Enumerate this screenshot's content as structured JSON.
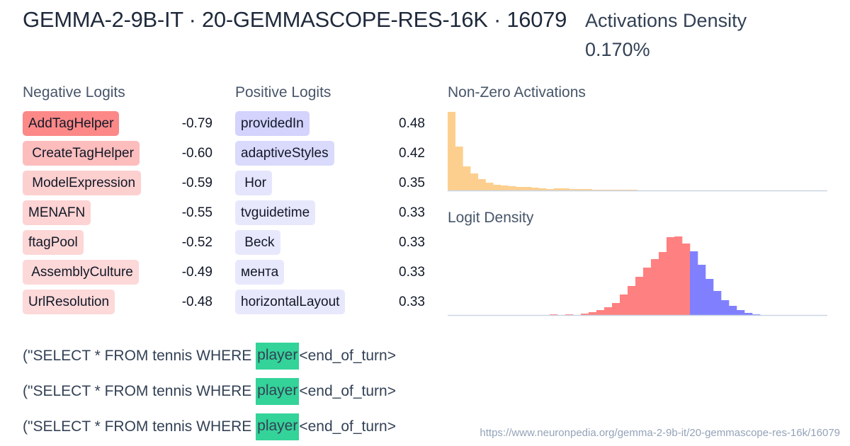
{
  "header": {
    "title": "GEMMA-2-9B-IT · 20-GEMMASCOPE-RES-16K · 16079",
    "density_label": "Activations Density",
    "density_value": "0.170%"
  },
  "negative_logits": {
    "title": "Negative Logits",
    "items": [
      {
        "token": "AddTagHelper",
        "value": "-0.79",
        "color": "#fc8888"
      },
      {
        "token": " CreateTagHelper",
        "value": "-0.60",
        "color": "#fdbdbd"
      },
      {
        "token": " ModelExpression",
        "value": "-0.59",
        "color": "#fdd0d0"
      },
      {
        "token": "MENAFN",
        "value": "-0.55",
        "color": "#fdd3d3"
      },
      {
        "token": "ftagPool",
        "value": "-0.52",
        "color": "#fdd6d6"
      },
      {
        "token": " AssemblyCulture",
        "value": "-0.49",
        "color": "#fdd8d8"
      },
      {
        "token": "UrlResolution",
        "value": "-0.48",
        "color": "#fdd9d9"
      }
    ]
  },
  "positive_logits": {
    "title": "Positive Logits",
    "items": [
      {
        "token": "providedIn",
        "value": "0.48",
        "color": "#d3d3fd"
      },
      {
        "token": "adaptiveStyles",
        "value": "0.42",
        "color": "#dadafd"
      },
      {
        "token": " Hor",
        "value": "0.35",
        "color": "#e5e5fd"
      },
      {
        "token": "tvguidetime",
        "value": "0.33",
        "color": "#e8e8fd"
      },
      {
        "token": " Beck",
        "value": "0.33",
        "color": "#e8e8fd"
      },
      {
        "token": "мента",
        "value": "0.33",
        "color": "#e8e8fd"
      },
      {
        "token": "horizontalLayout",
        "value": "0.33",
        "color": "#e8e8fd"
      }
    ]
  },
  "non_zero_activations": {
    "title": "Non-Zero Activations"
  },
  "logit_density": {
    "title": "Logit Density"
  },
  "examples": [
    {
      "prefix": "(\"SELECT * FROM tennis WHERE ",
      "highlight": "player",
      "suffix": "<end_of_turn>"
    },
    {
      "prefix": "(\"SELECT * FROM tennis WHERE ",
      "highlight": "player",
      "suffix": "<end_of_turn>"
    },
    {
      "prefix": "(\"SELECT * FROM tennis WHERE ",
      "highlight": "player",
      "suffix": "<end_of_turn>"
    }
  ],
  "footer": {
    "url": "https://www.neuronpedia.org/gemma-2-9b-it/20-gemmascope-res-16k/16079"
  },
  "colors": {
    "activation_bar": "#fdcf8f",
    "negative_bar": "#ff8080",
    "positive_bar": "#8080ff",
    "highlight": "#34d399",
    "axis": "#cbd5e1"
  },
  "chart_data": [
    {
      "type": "bar",
      "title": "Non-Zero Activations",
      "xlabel": "",
      "ylabel": "",
      "grid": false,
      "categories": [
        "b1",
        "b2",
        "b3",
        "b4",
        "b5",
        "b6",
        "b7",
        "b8",
        "b9",
        "b10",
        "b11",
        "b12",
        "b13",
        "b14",
        "b15",
        "b16",
        "b17",
        "b18",
        "b19",
        "b20",
        "b21",
        "b22",
        "b23",
        "b24",
        "b25"
      ],
      "values": [
        111,
        62,
        34,
        24,
        16,
        11,
        8,
        7,
        6,
        5,
        5,
        4,
        3,
        2,
        3,
        3,
        2,
        2,
        2,
        1,
        1,
        1,
        1,
        1,
        1
      ]
    },
    {
      "type": "bar",
      "title": "Logit Density",
      "xlabel": "",
      "ylabel": "",
      "grid": false,
      "categories": [
        "b1",
        "b2",
        "b3",
        "b4",
        "b5",
        "b6",
        "b7",
        "b8",
        "b9",
        "b10",
        "b11",
        "b12",
        "b13",
        "b14",
        "b15",
        "b16",
        "b17",
        "b18",
        "b19",
        "b20",
        "b21",
        "b22",
        "b23",
        "b24",
        "b25",
        "b26",
        "b27",
        "b28",
        "b29",
        "b30"
      ],
      "series": [
        {
          "name": "negative",
          "values": [
            1,
            0,
            1,
            0,
            2,
            4,
            7,
            11,
            17,
            29,
            41,
            54,
            67,
            79,
            89,
            110,
            111,
            101,
            0,
            0,
            0,
            0,
            0,
            0,
            0,
            0,
            0,
            0,
            0,
            0
          ]
        },
        {
          "name": "positive",
          "values": [
            0,
            0,
            0,
            0,
            0,
            0,
            0,
            0,
            0,
            0,
            0,
            0,
            0,
            0,
            0,
            0,
            0,
            0,
            90,
            71,
            51,
            34,
            21,
            13,
            7,
            3,
            1,
            0,
            0,
            0
          ]
        }
      ]
    }
  ]
}
